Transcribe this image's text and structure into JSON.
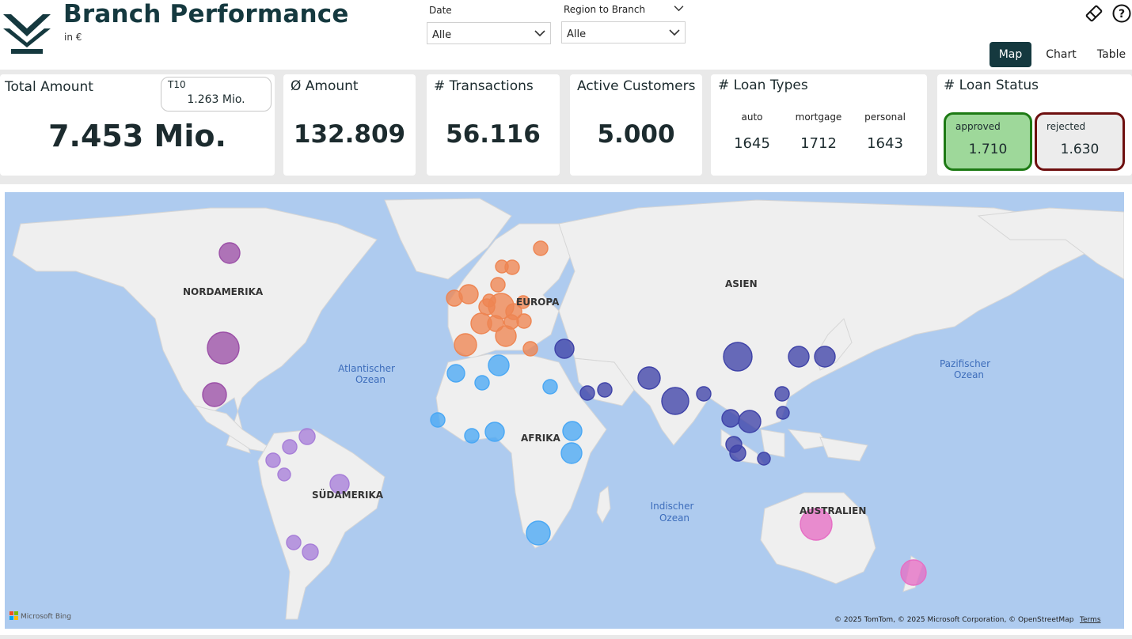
{
  "header": {
    "title": "Branch Performance",
    "subtitle": "in €"
  },
  "filters": {
    "date": {
      "label": "Date",
      "value": "Alle"
    },
    "region": {
      "label": "Region to Branch",
      "value": "Alle"
    }
  },
  "nav": {
    "map": "Map",
    "chart": "Chart",
    "table": "Table",
    "active": "Map"
  },
  "cards": {
    "total_amount": {
      "title": "Total Amount",
      "value": "7.453 Mio.",
      "t10_label": "T10",
      "t10_value": "1.263 Mio."
    },
    "avg_amount": {
      "title": "Ø Amount",
      "value": "132.809"
    },
    "transactions": {
      "title": "# Transactions",
      "value": "56.116"
    },
    "active_customers": {
      "title": "Active Customers",
      "value": "5.000"
    },
    "loan_types": {
      "title": "# Loan Types",
      "items": [
        {
          "label": "auto",
          "value": "1645"
        },
        {
          "label": "mortgage",
          "value": "1712"
        },
        {
          "label": "personal",
          "value": "1643"
        }
      ]
    },
    "loan_status": {
      "title": "# Loan Status",
      "approved": {
        "label": "approved",
        "value": "1.710",
        "color": "#9ed89a",
        "border": "#1d7a14"
      },
      "rejected": {
        "label": "rejected",
        "value": "1.630",
        "color": "#ececec",
        "border": "#6e0f0f"
      }
    }
  },
  "map": {
    "labels": {
      "north_america": "NORDAMERIKA",
      "south_america": "SÜDAMERIKA",
      "europe": "EUROPA",
      "africa": "AFRIKA",
      "asia": "ASIEN",
      "australia": "AUSTRALIEN",
      "atlantic_1": "Atlantischer",
      "atlantic_2": "Ozean",
      "indian_1": "Indischer",
      "indian_2": "Ozean",
      "pacific_1": "Pazifischer",
      "pacific_2": "Ozean"
    },
    "attribution": "© 2025 TomTom, © 2025 Microsoft Corporation, © OpenStreetMap",
    "terms": "Terms",
    "brand": "Microsoft Bing",
    "colors": {
      "water": "#aecbef",
      "land": "#efefef",
      "north_america": "#9b4fa7",
      "south_america": "#a77ed8",
      "europe": "#ee8552",
      "africa": "#4aa8f4",
      "asia": "#3f43a8",
      "oceania": "#e66ec4"
    }
  }
}
